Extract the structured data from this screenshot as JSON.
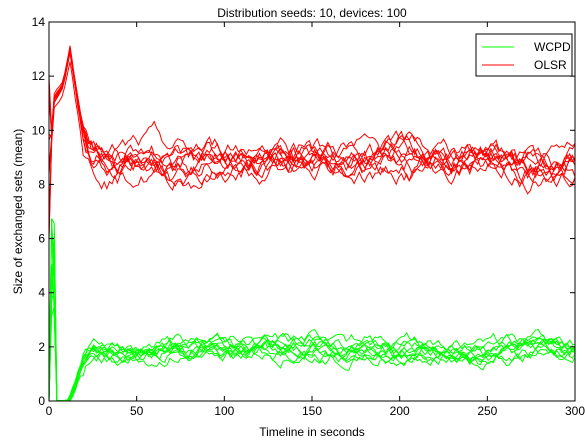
{
  "chart_data": {
    "type": "line",
    "title": "Distribution seeds: 10, devices: 100",
    "xlabel": "Timeline in seconds",
    "ylabel": "Size of exchanged sets (mean)",
    "xlim": [
      0,
      300
    ],
    "ylim": [
      0,
      14
    ],
    "xticks": [
      "0",
      "50",
      "100",
      "150",
      "200",
      "250",
      "300"
    ],
    "yticks": [
      "0",
      "2",
      "4",
      "6",
      "8",
      "10",
      "12",
      "14"
    ],
    "grid": false,
    "legend_position": "top-right",
    "series": [
      {
        "name": "WCPD",
        "color": "#00ff00",
        "description": "10 runs; spike to ~7 near t=2, then ~0 until t≈12, rising to ~1.8–2.2 by t≈25, fluctuating 1.2–3.0 until t=300",
        "x": [
          0,
          2,
          4,
          8,
          12,
          16,
          20,
          25,
          30,
          40,
          50,
          60,
          70,
          80,
          90,
          100,
          110,
          120,
          130,
          140,
          150,
          160,
          170,
          180,
          190,
          200,
          210,
          220,
          230,
          240,
          250,
          260,
          270,
          280,
          290,
          300
        ],
        "y": [
          0,
          6.5,
          0,
          0,
          0.1,
          0.8,
          1.6,
          1.9,
          1.8,
          1.8,
          1.9,
          1.9,
          2.0,
          1.9,
          2.1,
          2.0,
          1.9,
          2.0,
          2.0,
          2.0,
          2.1,
          2.0,
          1.9,
          2.0,
          2.0,
          1.9,
          2.0,
          1.9,
          2.0,
          1.9,
          1.8,
          1.9,
          1.9,
          2.0,
          2.0,
          2.0
        ]
      },
      {
        "name": "OLSR",
        "color": "#ff0000",
        "description": "10 runs; rising from ~11 to peak ~13 near t=12, falling to ~9.5 by t≈22, fluctuating 7.6–11.1 until t=300",
        "x": [
          0,
          2,
          4,
          8,
          12,
          16,
          20,
          25,
          30,
          40,
          50,
          60,
          70,
          80,
          90,
          100,
          110,
          120,
          130,
          140,
          150,
          160,
          170,
          180,
          190,
          200,
          210,
          220,
          230,
          240,
          250,
          260,
          270,
          280,
          290,
          300
        ],
        "y": [
          6.0,
          11.0,
          11.2,
          11.6,
          12.9,
          11.2,
          9.6,
          9.1,
          9.0,
          8.8,
          8.9,
          8.9,
          8.7,
          8.7,
          8.8,
          8.9,
          8.8,
          8.9,
          9.0,
          8.8,
          8.9,
          9.0,
          8.9,
          8.9,
          8.8,
          9.0,
          8.9,
          8.9,
          8.8,
          9.0,
          9.1,
          8.9,
          8.7,
          8.6,
          8.6,
          8.8
        ]
      }
    ]
  }
}
